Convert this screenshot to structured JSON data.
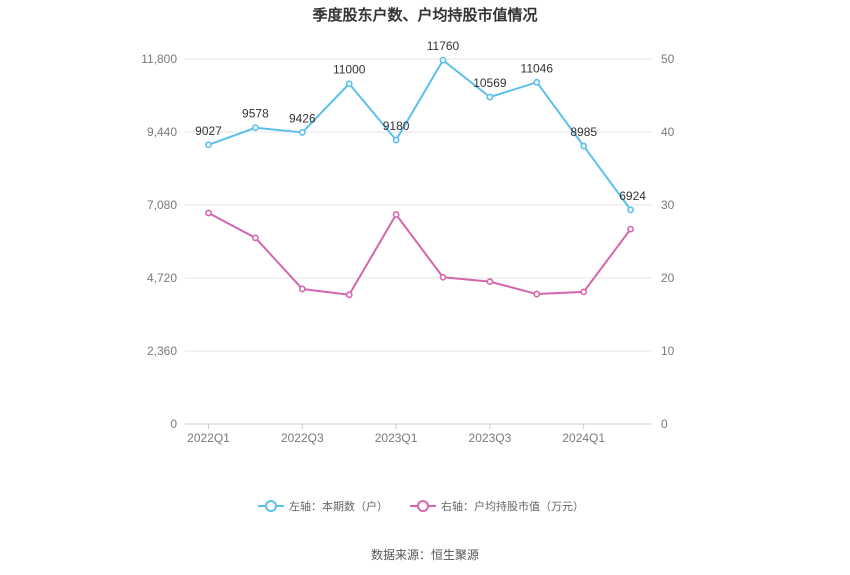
{
  "chart_data": {
    "type": "line",
    "title": "季度股东户数、户均持股市值情况",
    "source": "数据来源：恒生聚源",
    "x_ticks": [
      "2022Q1",
      "2022Q3",
      "2023Q1",
      "2023Q3",
      "2024Q1"
    ],
    "x": [
      "2022Q1",
      "2022Q2",
      "2022Q3",
      "2022Q4",
      "2023Q1",
      "2023Q2",
      "2023Q3",
      "2023Q4",
      "2024Q1",
      "2024Q2"
    ],
    "left_axis": {
      "ylim": [
        0,
        11800
      ],
      "ticks": [
        "0",
        "2,360",
        "4,720",
        "7,080",
        "9,440",
        "11,800"
      ],
      "tick_values": [
        0,
        2360,
        4720,
        7080,
        9440,
        11800
      ]
    },
    "right_axis": {
      "ylim": [
        0,
        50
      ],
      "ticks": [
        "0",
        "10",
        "20",
        "30",
        "40",
        "50"
      ],
      "tick_values": [
        0,
        10,
        20,
        30,
        40,
        50
      ]
    },
    "grid": true,
    "legend_position": "bottom",
    "series": [
      {
        "name": "左轴：本期数（户）",
        "axis": "left",
        "color": "#5bc0eb",
        "values": [
          9027,
          9578,
          9426,
          11000,
          9180,
          11760,
          10569,
          11046,
          8985,
          6924
        ],
        "labels": [
          "9027",
          "9578",
          "9426",
          "11000",
          "9180",
          "11760",
          "10569",
          "11046",
          "8985",
          "6924"
        ]
      },
      {
        "name": "右轴：户均持股市值（万元）",
        "axis": "right",
        "color": "#d466ad",
        "values": [
          28.9,
          25.5,
          18.5,
          17.7,
          28.7,
          20.1,
          19.5,
          17.8,
          18.1,
          26.7
        ]
      }
    ]
  }
}
